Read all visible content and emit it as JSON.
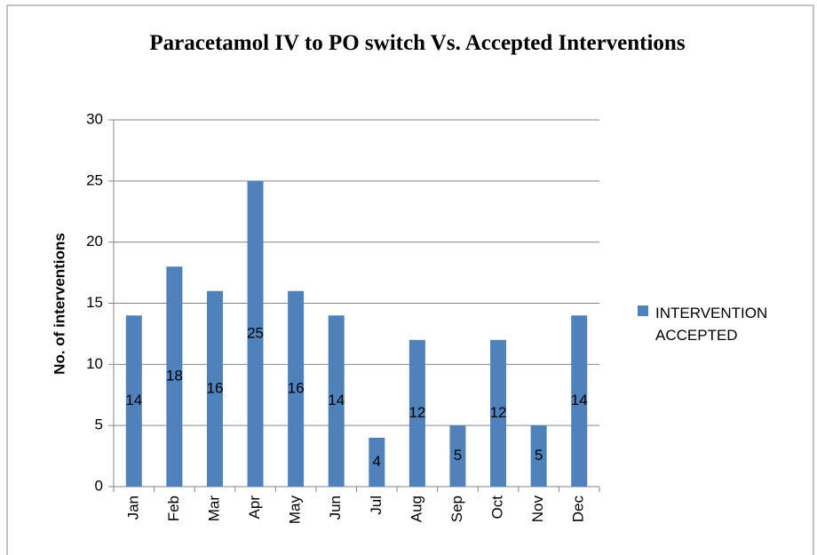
{
  "chart_data": {
    "type": "bar",
    "title": "Paracetamol IV to PO switch Vs.  Accepted Interventions",
    "y_label": "No. of interventions",
    "categories": [
      "Jan",
      "Feb",
      "Mar",
      "Apr",
      "May",
      "Jun",
      "Jul",
      "Aug",
      "Sep",
      "Oct",
      "Nov",
      "Dec"
    ],
    "series": [
      {
        "name": "INTERVENTION ACCEPTED",
        "color": "#4f81bd",
        "values": [
          14,
          18,
          16,
          25,
          16,
          14,
          4,
          12,
          5,
          12,
          5,
          14
        ]
      }
    ],
    "ylim": [
      0,
      30
    ],
    "yticks": [
      0,
      5,
      10,
      15,
      20,
      25,
      30
    ],
    "grid": true,
    "legend": "right"
  }
}
